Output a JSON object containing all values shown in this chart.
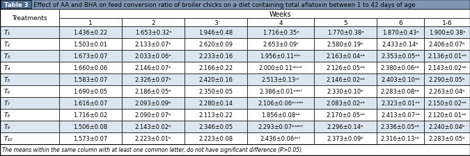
{
  "title": "Effect of AA and BHA on feed conversion ratio of broiler chicks on a diet containing total aflatoxin between 1 to 42 days of age",
  "table_label": "Table 3",
  "col_headers": [
    "Treatments",
    "1",
    "2",
    "3",
    "4",
    "5",
    "6",
    "1-6"
  ],
  "weeks_label": "Weeks",
  "footnote": "The means within the same column with at least one common letter, do not have significant difference (P>0.05).",
  "rows": [
    {
      "label": "T₁",
      "values": [
        "1.436±0.22",
        "1.653±0.32ᵃ",
        "1.946±0.48",
        "1.716±0.35ᵃ",
        "1.770±0.38ᵃ",
        "1.870±0.43ᵃ",
        "1.900±0.38ᵃ"
      ]
    },
    {
      "label": "T₂",
      "values": [
        "1.503±0.01",
        "2.133±0.07ᵇ",
        "2.620±0.09",
        "2.653±0.09ᶠ",
        "2.580±0.19ᵇ",
        "2.433±0.14ᵇ",
        "2.406±0.07ᵇ"
      ]
    },
    {
      "label": "T₃",
      "values": [
        "1.673±0.07",
        "2.033±0.06ᵇ",
        "2.233±0.16",
        "1.956±0.11ᵃᵇᶜ",
        "2.163±0.04ᵃᵇ",
        "2.353±0.05ᵃᵇ",
        "2.136±0.01ᵃᵇ"
      ]
    },
    {
      "label": "T₄",
      "values": [
        "1.660±0.06",
        "2.146±0.07ᵇ",
        "2.166±0.22",
        "2.000±0.11ᵃᵇᶜᵈ",
        "2.126±0.05ᵃᵇ",
        "2.380±0.06ᵃᵇ",
        "2.143±0.02ᵃᵇ"
      ]
    },
    {
      "label": "T₅",
      "values": [
        "1.583±0.07",
        "2.326±0.07ᵇ",
        "2.420±0.16",
        "2.513±0.13ᶜᶠ",
        "2.146±0.02ᵃᵇ",
        "2.403±0.10ᵃᵇ",
        "2.290±0.05ᵇ"
      ]
    },
    {
      "label": "T₆",
      "values": [
        "1.690±0.05",
        "2.186±0.05ᵇ",
        "2.350±0.05",
        "2.386±0.01ᵃᵈᵉᶠ",
        "2.330±0.10ᵇ",
        "2.283±0.08ᵃᵇ",
        "2.263±0.04ᵇ"
      ]
    },
    {
      "label": "T₇",
      "values": [
        "1.616±0.07",
        "2.093±0.09ᵇ",
        "2.280±0.14",
        "2.106±0.06ᵇᶜᵃᵈᵉ",
        "2.083±0.02ᵃᵇ",
        "2.323±0.01ᵃᵇ",
        "2.150±0.02ᵃᵇ"
      ]
    },
    {
      "label": "T₈",
      "values": [
        "1.716±0.02",
        "2.090±0.07ᵇ",
        "2.113±0.22",
        "1.856±0.08ᵃᵇ",
        "2.170±0.05ᵃᵇ",
        "2.413±0.07ᵃᵇ",
        "2.120±0.01ᵃᵇ"
      ]
    },
    {
      "label": "T₉",
      "values": [
        "1.506±0.08",
        "2.143±0.02ᵇ",
        "2.346±0.05",
        "2.293±0.07ᵇᵃᵈᵉᶠ",
        "2.296±0.14ᵇ",
        "2.336±0.05ᵃᵇ",
        "2.240±0.04ᵇ"
      ]
    },
    {
      "label": "T₁₀",
      "values": [
        "1.573±0.07",
        "2.223±0.01ᵇ",
        "2.223±0.08",
        "2.436±0.06ᵈᵉᶠ",
        "2.373±0.09ᵇ",
        "2.316±0.13ᵃᵇ",
        "2.283±0.05ᵇ"
      ]
    }
  ],
  "title_bg": "#7f96b2",
  "table_label_bg": "#4f6d8f",
  "row_bg_odd": "#ffffff",
  "row_bg_even": "#dce6f1",
  "header_bg": "#ffffff",
  "border_color": "#000000",
  "weeks_row_bg": "#ffffff",
  "col_header_bg": "#ffffff"
}
